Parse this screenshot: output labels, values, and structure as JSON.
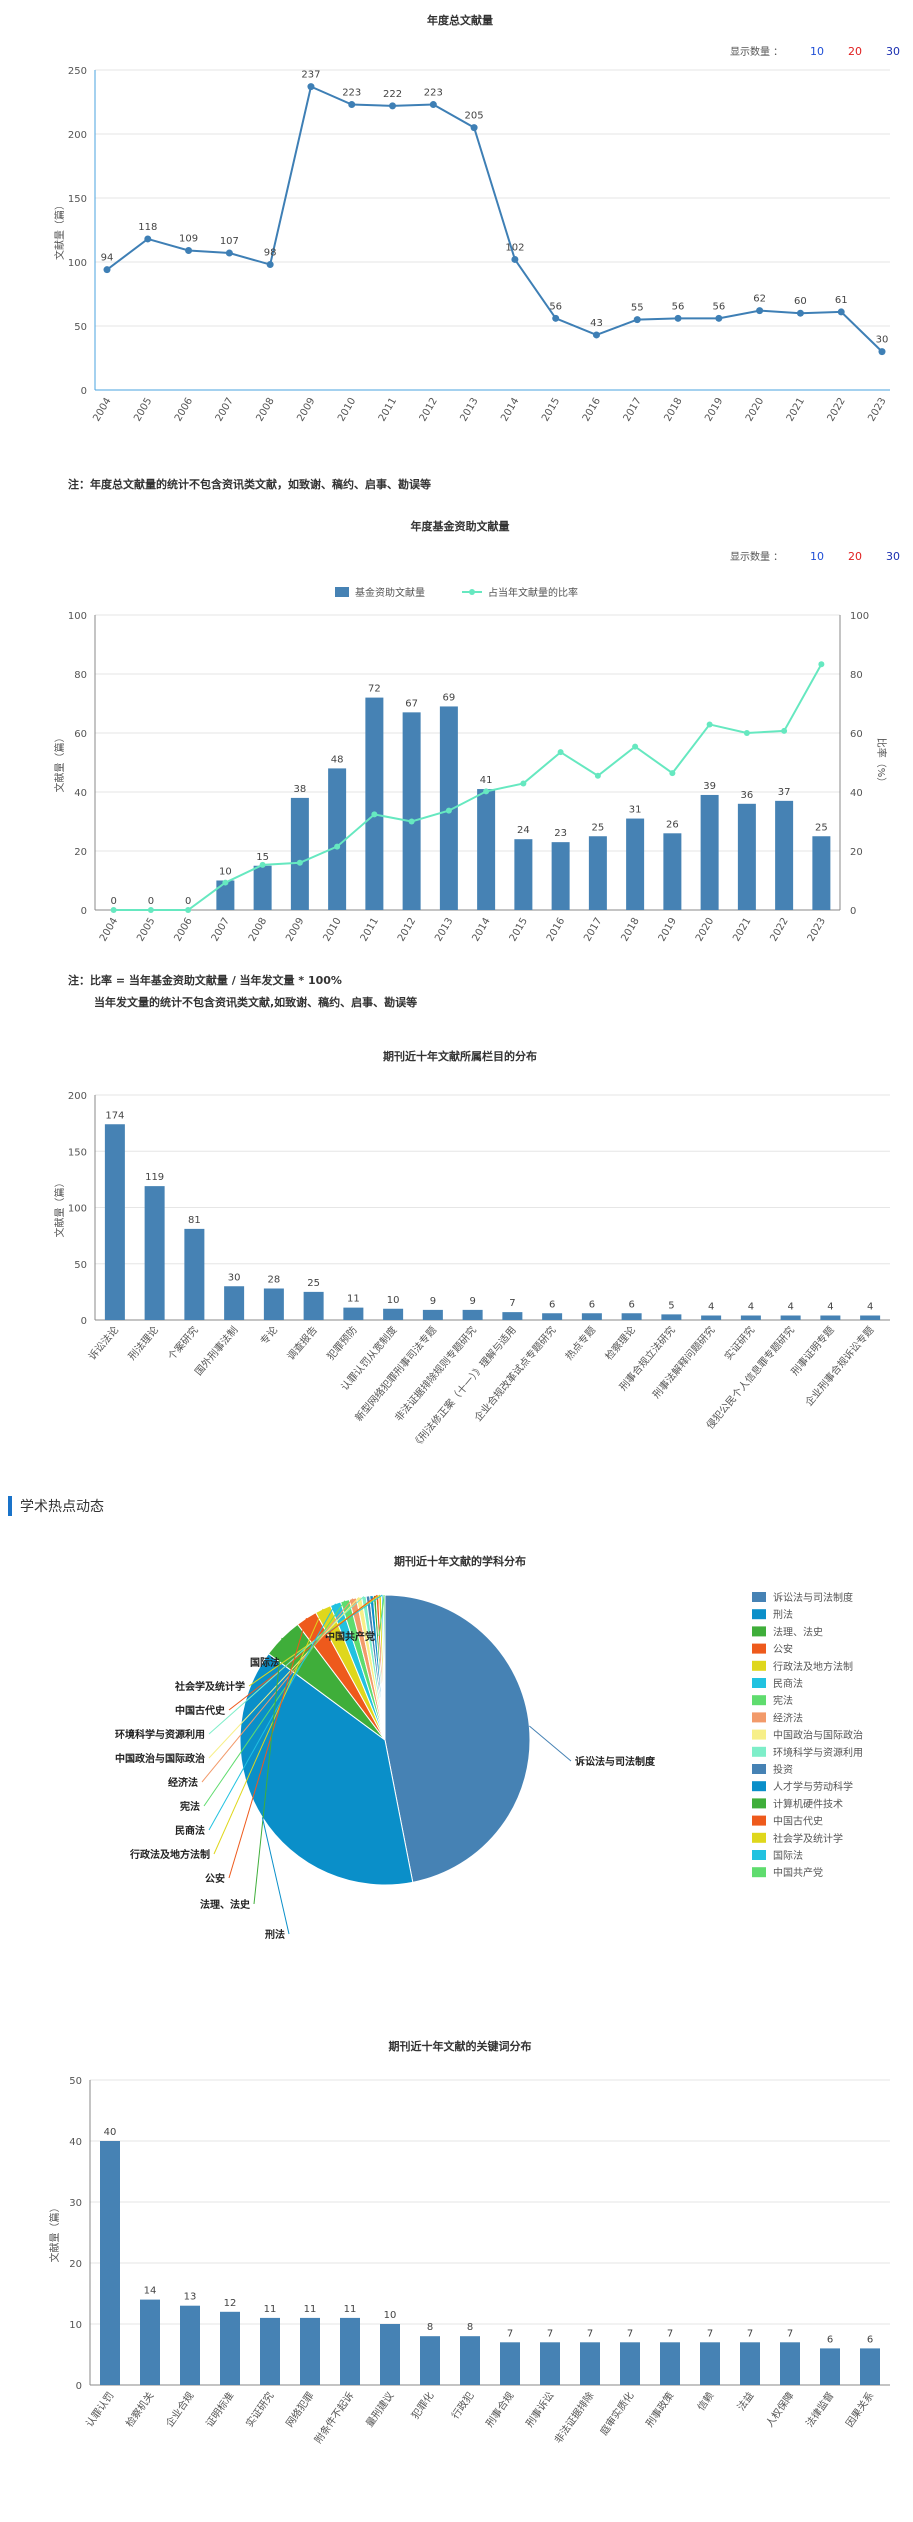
{
  "colors": {
    "bar": "#4682b4",
    "line": "#3e7fb5",
    "ratio": "#66e8c0",
    "blue": "#1f4fd6",
    "red": "#e02020",
    "navy": "#1a2fb0"
  },
  "display_count": {
    "label": "显示数量 ：",
    "options": [
      "10",
      "20",
      "30"
    ]
  },
  "notes": {
    "chart1": "注：年度总文献量的统计不包含资讯类文献，如致谢、稿约、启事、勘误等",
    "chart2_line1": "注：比率 = 当年基金资助文献量 / 当年发文量 * 100%",
    "chart2_line2": "当年发文量的统计不包含资讯类文献,如致谢、稿约、启事、勘误等"
  },
  "section_title": "学术热点动态",
  "chart_data": [
    {
      "id": "annual",
      "type": "line",
      "title": "年度总文献量",
      "ylabel": "文献量（篇）",
      "ylim": [
        0,
        250
      ],
      "yticks": [
        0,
        50,
        100,
        150,
        200,
        250
      ],
      "x": [
        "2004",
        "2005",
        "2006",
        "2007",
        "2008",
        "2009",
        "2010",
        "2011",
        "2012",
        "2013",
        "2014",
        "2015",
        "2016",
        "2017",
        "2018",
        "2019",
        "2020",
        "2021",
        "2022",
        "2023"
      ],
      "values": [
        94,
        118,
        109,
        107,
        98,
        237,
        223,
        222,
        223,
        205,
        102,
        56,
        43,
        55,
        56,
        56,
        62,
        60,
        61,
        30
      ]
    },
    {
      "id": "fund",
      "type": "bar",
      "title": "年度基金资助文献量",
      "ylabel": "文献量（篇）",
      "y2label": "比率（%）",
      "ylim": [
        0,
        100
      ],
      "yticks": [
        0,
        20,
        40,
        60,
        80,
        100
      ],
      "x": [
        "2004",
        "2005",
        "2006",
        "2007",
        "2008",
        "2009",
        "2010",
        "2011",
        "2012",
        "2013",
        "2014",
        "2015",
        "2016",
        "2017",
        "2018",
        "2019",
        "2020",
        "2021",
        "2022",
        "2023"
      ],
      "series": [
        {
          "name": "基金资助文献量",
          "values": [
            0,
            0,
            0,
            10,
            15,
            38,
            48,
            72,
            67,
            69,
            41,
            24,
            23,
            25,
            31,
            26,
            39,
            36,
            37,
            25
          ]
        },
        {
          "name": "占当年文献量的比率",
          "values": [
            0,
            0,
            0,
            9.3,
            15.3,
            16,
            21.5,
            32.4,
            30,
            33.7,
            40.2,
            42.9,
            53.5,
            45.5,
            55.4,
            46.4,
            62.9,
            60,
            60.7,
            83.3
          ]
        }
      ]
    },
    {
      "id": "column",
      "type": "bar",
      "title": "期刊近十年文献所属栏目的分布",
      "ylabel": "文献量（篇）",
      "ylim": [
        0,
        200
      ],
      "yticks": [
        0,
        50,
        100,
        150,
        200
      ],
      "categories": [
        "诉讼法论",
        "刑法理论",
        "个案研究",
        "国外刑事法制",
        "专论",
        "调查报告",
        "犯罪预防",
        "认罪认罚从宽制度",
        "新型网络犯罪刑事司法专题",
        "非法证据排除规则专题研究",
        "《刑法修正案（十一）》理解与适用",
        "企业合规改革试点专题研究",
        "热点专题",
        "检察理论",
        "刑事合规立法研究",
        "刑事法解释问题研究",
        "实证研究",
        "侵犯公民个人信息罪专题研究",
        "刑事证明专题",
        "企业刑事合规诉讼专题"
      ],
      "values": [
        174,
        119,
        81,
        30,
        28,
        25,
        11,
        10,
        9,
        9,
        7,
        6,
        6,
        6,
        5,
        4,
        4,
        4,
        4,
        4
      ]
    },
    {
      "id": "subject",
      "type": "pie",
      "title": "期刊近十年文献的学科分布",
      "labels": [
        "诉讼法与司法制度",
        "刑法",
        "法理、法史",
        "公安",
        "行政法及地方法制",
        "民商法",
        "宪法",
        "经济法",
        "中国政治与国际政治",
        "环境科学与资源利用",
        "投资",
        "人才学与劳动科学",
        "计算机硬件技术",
        "中国古代史",
        "社会学及统计学",
        "国际法",
        "中国共产党"
      ],
      "values": [
        474,
        386,
        46,
        24,
        18,
        12,
        10,
        8,
        6,
        5,
        4,
        4,
        3,
        3,
        3,
        2,
        2
      ],
      "colors": [
        "#4682b4",
        "#0a8fc9",
        "#3fae3a",
        "#ee5a1c",
        "#dfd71c",
        "#21c2e0",
        "#5fdc6e",
        "#f29a6a",
        "#f7ef88",
        "#7eeec9",
        "#4682b4",
        "#0a8fc9",
        "#3fae3a",
        "#ee5a1c",
        "#dfd71c",
        "#21c2e0",
        "#5fdc6e"
      ],
      "callouts": [
        "中国共产党",
        "国际法",
        "社会学及统计学",
        "中国古代史",
        "环境科学与资源利用",
        "中国政治与国际政治",
        "经济法",
        "宪法",
        "民商法",
        "行政法及地方法制",
        "公安",
        "法理、法史",
        "刑法",
        "诉讼法与司法制度"
      ]
    },
    {
      "id": "keyword",
      "type": "bar",
      "title": "期刊近十年文献的关键词分布",
      "ylabel": "文献量（篇）",
      "ylim": [
        0,
        50
      ],
      "yticks": [
        0,
        10,
        20,
        30,
        40,
        50
      ],
      "categories": [
        "认罪认罚",
        "检察机关",
        "企业合规",
        "证明标准",
        "实证研究",
        "网络犯罪",
        "附条件不起诉",
        "量刑建议",
        "犯罪化",
        "行政犯",
        "刑事合规",
        "刑事诉讼",
        "非法证据排除",
        "庭审实质化",
        "刑事政策",
        "信赖",
        "法益",
        "人权保障",
        "法律监督",
        "因果关系"
      ],
      "values": [
        40,
        14,
        13,
        12,
        11,
        11,
        11,
        10,
        8,
        8,
        7,
        7,
        7,
        7,
        7,
        7,
        7,
        7,
        6,
        6
      ]
    }
  ]
}
